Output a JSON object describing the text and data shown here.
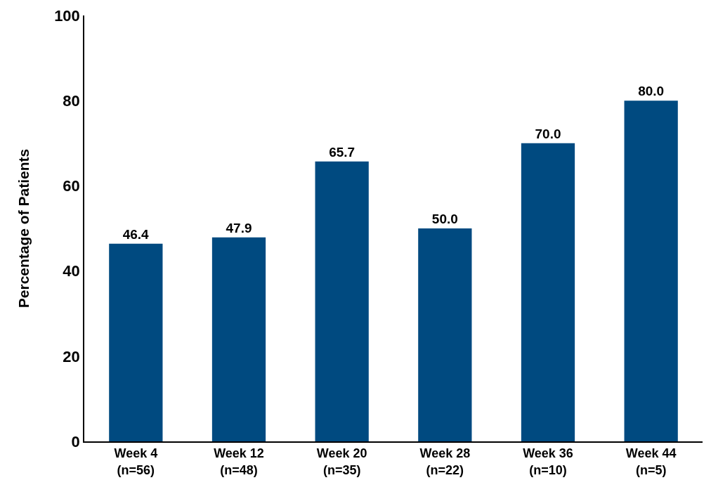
{
  "chart_data": {
    "type": "bar",
    "ylabel": "Percentage of Patients",
    "categories": [
      "Week 4\n(n=56)",
      "Week 12\n(n=48)",
      "Week 20\n(n=35)",
      "Week 28\n(n=22)",
      "Week 36\n(n=10)",
      "Week 44\n(n=5)"
    ],
    "values": [
      46.4,
      47.9,
      65.7,
      50.0,
      70.0,
      80.0
    ],
    "value_labels": [
      "46.4",
      "47.9",
      "65.7",
      "50.0",
      "70.0",
      "80.0"
    ],
    "color": "#004a80",
    "ylim": [
      0,
      100
    ],
    "yticks": [
      0,
      20,
      40,
      60,
      80,
      100
    ]
  }
}
